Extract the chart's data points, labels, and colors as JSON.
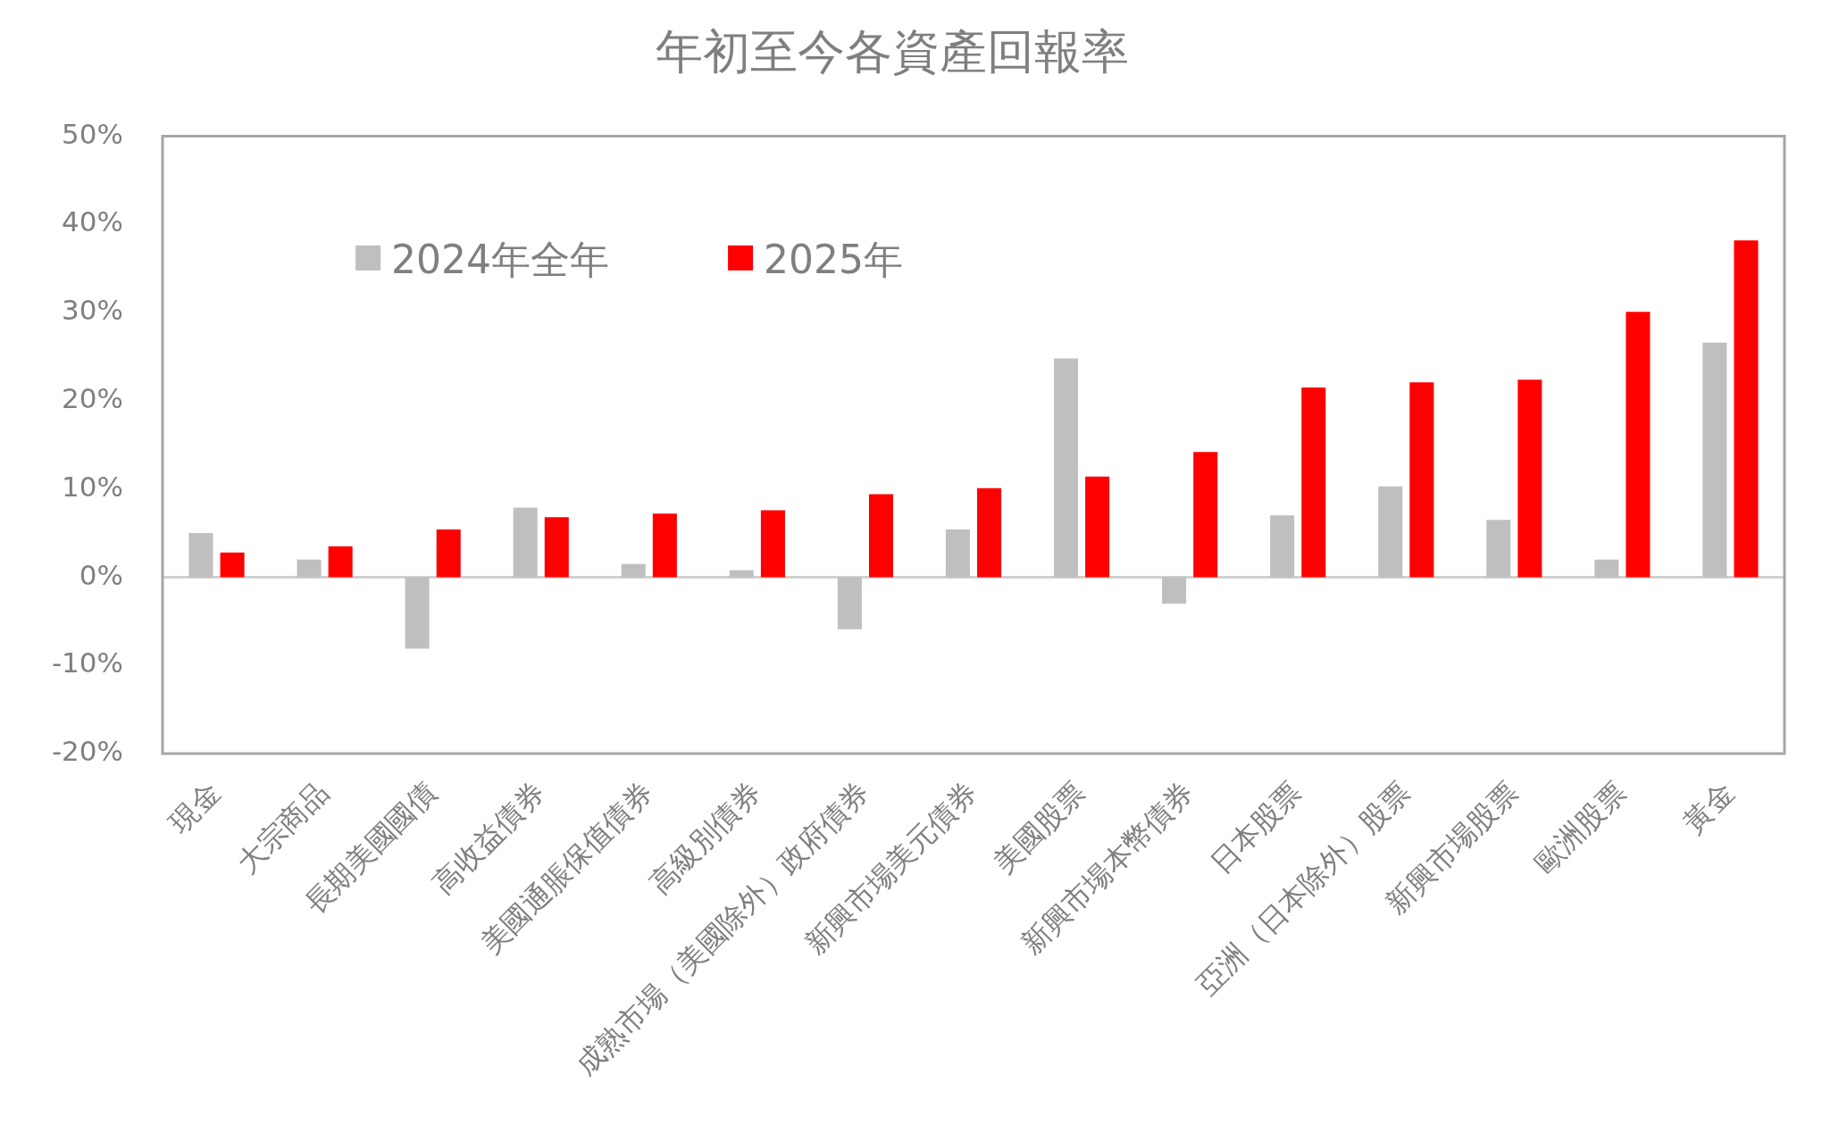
{
  "chart_data": {
    "type": "bar",
    "title": "年初至今各資產回報率",
    "categories": [
      "現金",
      "大宗商品",
      "長期美國國債",
      "高收益債券",
      "美國通脹保值債券",
      "高級別債券",
      "成熟市場（美國除外）政府債券",
      "新興市場美元債券",
      "美國股票",
      "新興市場本幣債券",
      "日本股票",
      "亞洲（日本除外）股票",
      "新興市場股票",
      "歐洲股票",
      "黃金"
    ],
    "series": [
      {
        "name": "2024年全年",
        "color": "#bfbfbf",
        "values": [
          5.0,
          2.0,
          -8.1,
          7.9,
          1.5,
          0.8,
          -5.9,
          5.4,
          24.8,
          -3.0,
          7.0,
          10.3,
          6.5,
          2.0,
          26.6
        ]
      },
      {
        "name": "2025年",
        "color": "#ff0000",
        "values": [
          2.8,
          3.5,
          5.4,
          6.8,
          7.2,
          7.6,
          9.4,
          10.1,
          11.4,
          14.2,
          21.5,
          22.1,
          22.4,
          30.1,
          38.2
        ]
      }
    ],
    "ylim": [
      -20,
      50
    ],
    "yticks": [
      {
        "value": -20,
        "label": "-20%"
      },
      {
        "value": -10,
        "label": "-10%"
      },
      {
        "value": 0,
        "label": "0%"
      },
      {
        "value": 10,
        "label": "10%"
      },
      {
        "value": 20,
        "label": "20%"
      },
      {
        "value": 30,
        "label": "30%"
      },
      {
        "value": 40,
        "label": "40%"
      },
      {
        "value": 50,
        "label": "50%"
      }
    ],
    "ref_lines": [
      {
        "axis": "y",
        "value": 0,
        "color": "#d0d0d0"
      }
    ],
    "grid": false,
    "legend": "top left"
  }
}
